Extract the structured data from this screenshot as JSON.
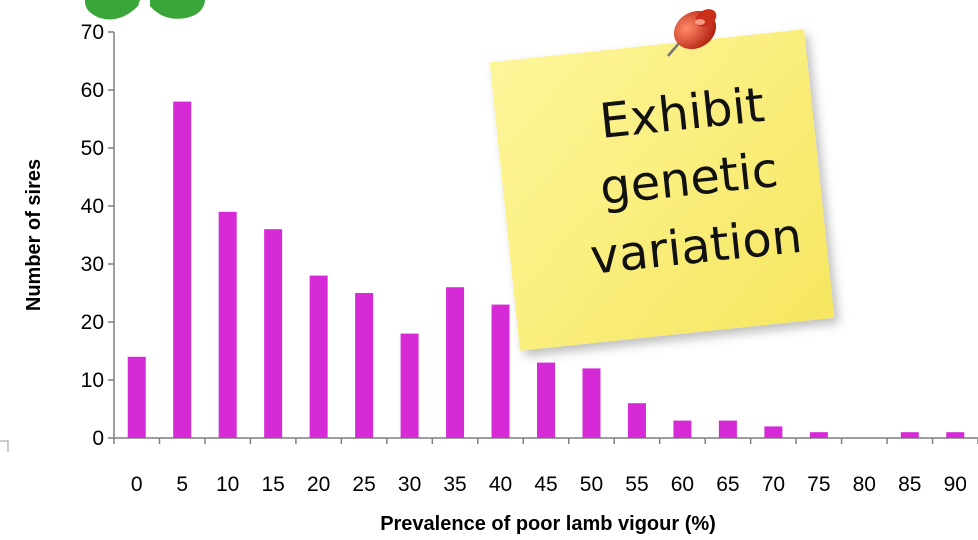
{
  "chart_data": {
    "type": "bar",
    "categories": [
      "0",
      "5",
      "10",
      "15",
      "20",
      "25",
      "30",
      "35",
      "40",
      "45",
      "50",
      "55",
      "60",
      "65",
      "70",
      "75",
      "80",
      "85",
      "90"
    ],
    "values": [
      14,
      58,
      39,
      36,
      28,
      25,
      18,
      26,
      23,
      13,
      12,
      6,
      3,
      3,
      2,
      1,
      0,
      1,
      1
    ],
    "xlabel": "Prevalence of poor lamb vigour (%)",
    "ylabel": "Number of sires",
    "ylim": [
      0,
      70
    ],
    "yticks": [
      0,
      10,
      20,
      30,
      40,
      50,
      60,
      70
    ],
    "grid": false,
    "bar_color": "#d62ad6"
  },
  "sticky_note": {
    "lines": [
      "Exhibit",
      "genetic",
      "variation"
    ],
    "color": "#fbf07a",
    "pin_color": "#d9361f"
  },
  "logo": {
    "color": "#3aa63a"
  }
}
